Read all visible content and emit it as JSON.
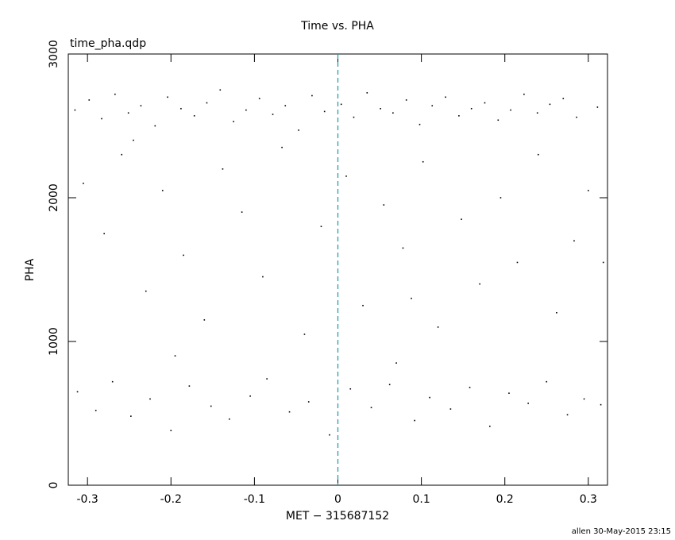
{
  "chart_data": {
    "type": "scatter",
    "title": "Time vs. PHA",
    "annotation": "time_pha.qdp",
    "footer": "allen 30-May-2015 23:15",
    "x_label": "MET − 315687152",
    "y_label": "PHA",
    "color": "#000000",
    "marker_line_x": 0,
    "marker_line_color": "#1a9aa8",
    "xlim": [
      -0.323,
      0.323
    ],
    "xticks": [
      -0.3,
      -0.2,
      -0.1,
      0,
      0.1,
      0.2,
      0.3
    ],
    "ylim": [
      0,
      3000
    ],
    "yticks": [
      0,
      1000,
      2000,
      3000
    ],
    "x": [
      -0.315,
      -0.298,
      -0.283,
      -0.267,
      -0.251,
      -0.236,
      -0.219,
      -0.204,
      -0.188,
      -0.172,
      -0.157,
      -0.141,
      -0.125,
      -0.11,
      -0.094,
      -0.078,
      -0.063,
      -0.047,
      -0.031,
      -0.016,
      0.004,
      0.019,
      0.035,
      0.051,
      0.066,
      0.082,
      0.098,
      0.113,
      0.129,
      0.145,
      0.16,
      0.176,
      0.192,
      0.207,
      0.223,
      0.239,
      0.254,
      0.27,
      0.286,
      0.311,
      -0.305,
      -0.28,
      -0.259,
      -0.23,
      -0.21,
      -0.185,
      -0.16,
      -0.138,
      -0.115,
      -0.09,
      -0.067,
      -0.04,
      -0.02,
      0.01,
      0.03,
      0.055,
      0.078,
      0.102,
      0.12,
      0.148,
      0.17,
      0.195,
      0.215,
      0.24,
      0.262,
      0.283,
      0.3,
      0.318,
      -0.245,
      0.088,
      -0.312,
      -0.29,
      -0.27,
      -0.248,
      -0.225,
      -0.2,
      -0.178,
      -0.152,
      -0.13,
      -0.105,
      -0.085,
      -0.058,
      -0.035,
      -0.01,
      0.015,
      0.04,
      0.062,
      0.092,
      0.11,
      0.135,
      0.158,
      0.182,
      0.205,
      0.228,
      0.25,
      0.275,
      0.295,
      0.315,
      -0.195,
      0.07
    ],
    "values": [
      2610,
      2680,
      2550,
      2720,
      2590,
      2640,
      2500,
      2700,
      2620,
      2570,
      2660,
      2750,
      2530,
      2610,
      2690,
      2580,
      2640,
      2470,
      2710,
      2600,
      2650,
      2560,
      2730,
      2620,
      2590,
      2680,
      2510,
      2640,
      2700,
      2570,
      2620,
      2660,
      2540,
      2610,
      2720,
      2590,
      2650,
      2690,
      2560,
      2630,
      2100,
      1750,
      2300,
      1350,
      2050,
      1600,
      1150,
      2200,
      1900,
      1450,
      2350,
      1050,
      1800,
      2150,
      1250,
      1950,
      1650,
      2250,
      1100,
      1850,
      1400,
      2000,
      1550,
      2300,
      1200,
      1700,
      2050,
      1550,
      2400,
      1300,
      650,
      520,
      720,
      480,
      600,
      380,
      690,
      550,
      460,
      620,
      740,
      510,
      580,
      350,
      670,
      540,
      700,
      450,
      610,
      530,
      680,
      410,
      640,
      570,
      720,
      490,
      600,
      560,
      900,
      850
    ]
  }
}
